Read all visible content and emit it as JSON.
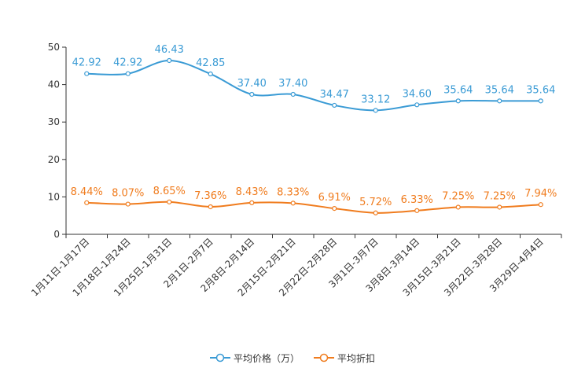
{
  "chart_data": {
    "type": "line",
    "categories": [
      "1月11日-1月17日",
      "1月18日-1月24日",
      "1月25日-1月31日",
      "2月1日-2月7日",
      "2月8日-2月14日",
      "2月15日-2月21日",
      "2月22日-2月28日",
      "3月1日-3月7日",
      "3月8日-3月14日",
      "3月15日-3月21日",
      "3月22日-3月28日",
      "3月29日-4月4日"
    ],
    "series": [
      {
        "name": "平均价格（万）",
        "color": "#3a9bd5",
        "values": [
          42.92,
          42.92,
          46.43,
          42.85,
          37.4,
          37.4,
          34.47,
          33.12,
          34.6,
          35.64,
          35.64,
          35.64
        ],
        "labels": [
          "42.92",
          "42.92",
          "46.43",
          "42.85",
          "37.40",
          "37.40",
          "34.47",
          "33.12",
          "34.60",
          "35.64",
          "35.64",
          "35.64"
        ]
      },
      {
        "name": "平均折扣",
        "color": "#f07c1e",
        "values": [
          8.44,
          8.07,
          8.65,
          7.36,
          8.43,
          8.33,
          6.91,
          5.72,
          6.33,
          7.25,
          7.25,
          7.94
        ],
        "labels": [
          "8.44%",
          "8.07%",
          "8.65%",
          "7.36%",
          "8.43%",
          "8.33%",
          "6.91%",
          "5.72%",
          "6.33%",
          "7.25%",
          "7.25%",
          "7.94%"
        ]
      }
    ],
    "ylim": [
      0,
      50
    ],
    "yticks": [
      "0",
      "10",
      "20",
      "30",
      "40",
      "50"
    ],
    "legend_position": "bottom-center"
  }
}
